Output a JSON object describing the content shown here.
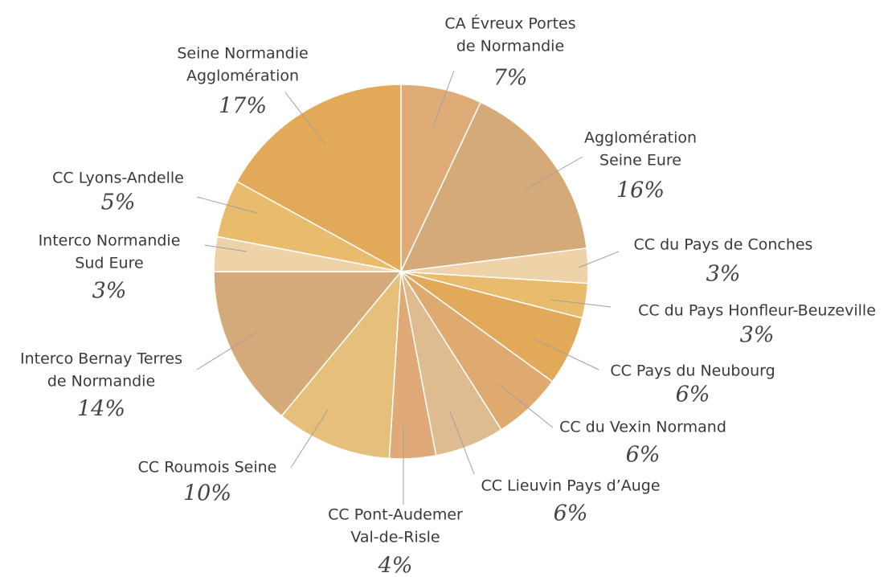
{
  "chart_data": {
    "type": "pie",
    "categories": [
      [
        "CA Évreux Portes",
        "de Normandie"
      ],
      [
        "Agglomération",
        "Seine Eure"
      ],
      [
        "CC du Pays de Conches"
      ],
      [
        "CC du Pays Honfleur-Beuzeville"
      ],
      [
        "CC Pays du Neubourg"
      ],
      [
        "CC du Vexin Normand"
      ],
      [
        "CC Lieuvin Pays d’Auge"
      ],
      [
        "CC Pont-Audemer",
        "Val-de-Risle"
      ],
      [
        "CC Roumois Seine"
      ],
      [
        "Interco Bernay Terres",
        "de Normandie"
      ],
      [
        "Interco Normandie",
        "Sud Eure"
      ],
      [
        "CC Lyons-Andelle"
      ],
      [
        "Seine Normandie",
        "Agglomération"
      ]
    ],
    "values": [
      7,
      16,
      3,
      3,
      6,
      6,
      6,
      4,
      10,
      14,
      3,
      5,
      17
    ],
    "value_labels": [
      "7%",
      "16%",
      "3%",
      "3%",
      "6%",
      "6%",
      "6%",
      "4%",
      "10%",
      "14%",
      "3%",
      "5%",
      "17%"
    ],
    "colors": [
      "#dfac78",
      "#d4aa78",
      "#efd3a8",
      "#e8bc6c",
      "#e2aa58",
      "#dfaa70",
      "#dfbb90",
      "#dfaa78",
      "#e6c07a",
      "#d4aa78",
      "#efd3a8",
      "#e8bc6c",
      "#e2aa58"
    ]
  }
}
